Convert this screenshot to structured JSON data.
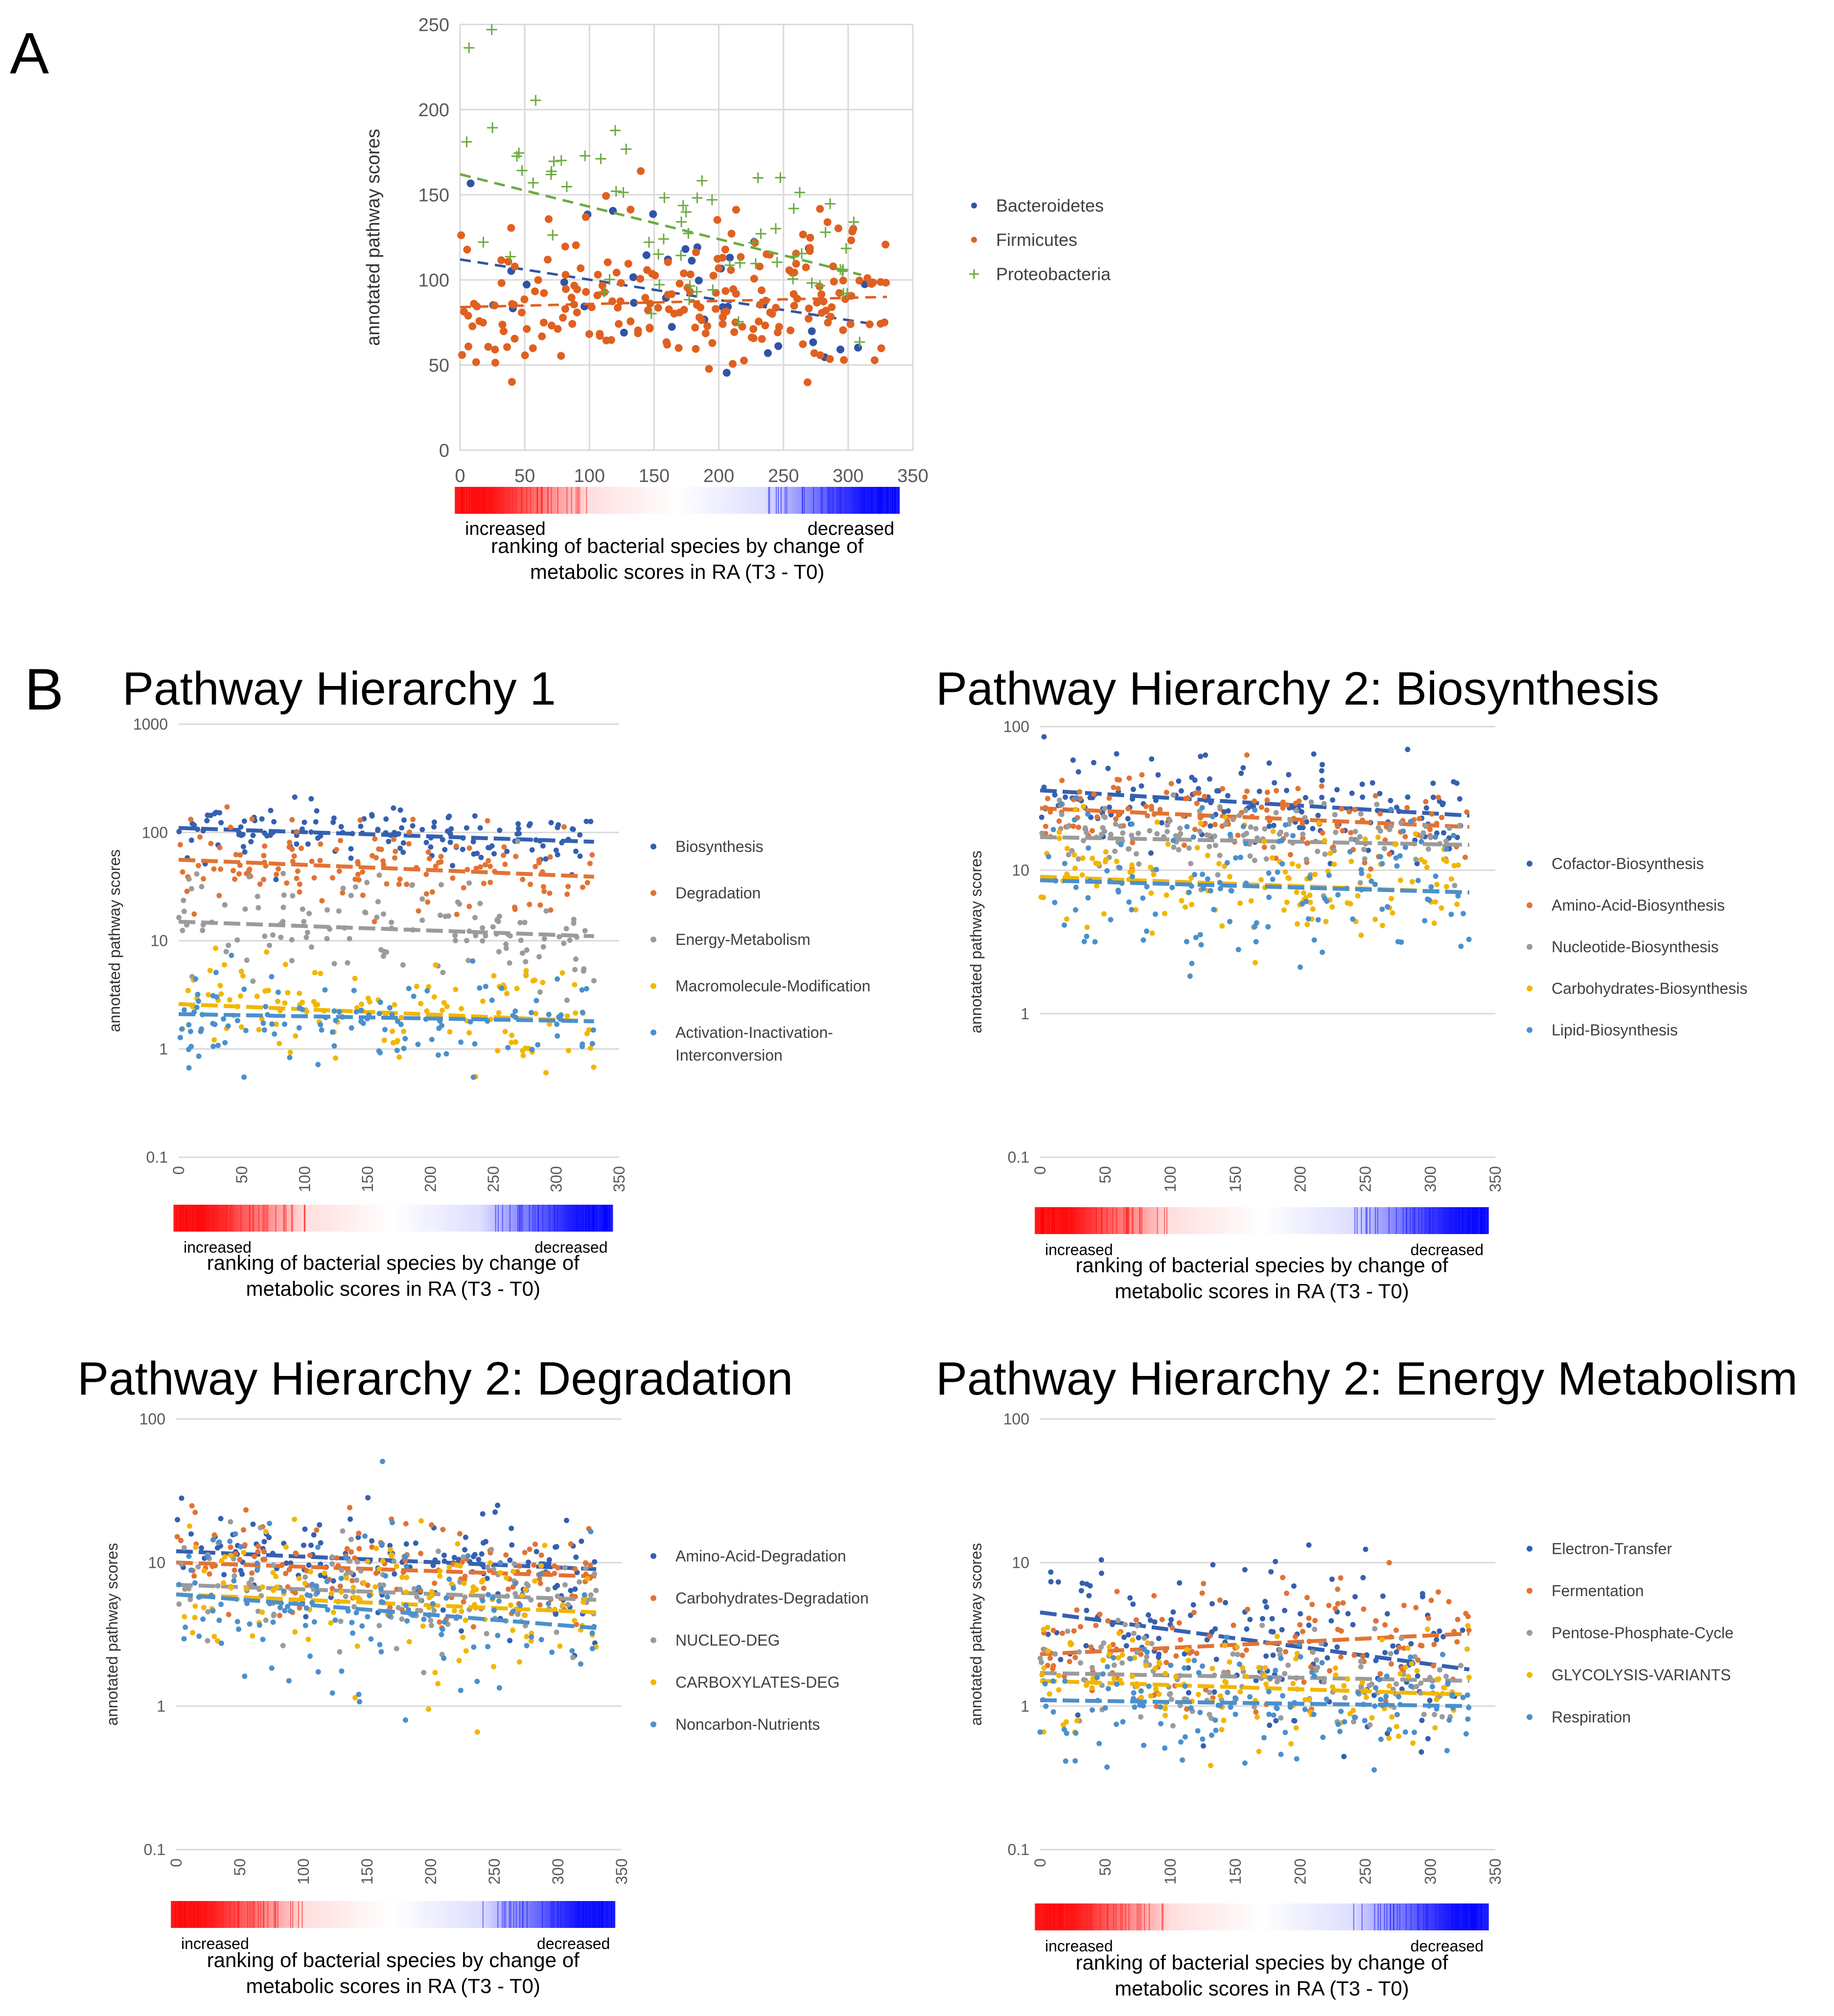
{
  "panel_labels": {
    "a": "A",
    "b": "B"
  },
  "colorbar": {
    "increased": "increased",
    "decreased": "decreased",
    "start_color": "#ff0000",
    "end_color": "#0000ff"
  },
  "xlabel_lines": [
    "ranking of bacterial species by change of",
    "metabolic scores in RA (T3 - T0)"
  ],
  "ylabel": "annotated pathway scores",
  "chart_data": [
    {
      "id": "A",
      "type": "scatter",
      "title": "",
      "xlabel": "ranking of bacterial species by change of metabolic scores in RA (T3 - T0)",
      "ylabel": "annotated pathway scores",
      "xlim": [
        0,
        350
      ],
      "ylim": [
        0,
        250
      ],
      "yscale": "linear",
      "xticks": [
        0,
        50,
        100,
        150,
        200,
        250,
        300,
        350
      ],
      "yticks": [
        0,
        50,
        100,
        150,
        200,
        250
      ],
      "grid": true,
      "legend_position": "right",
      "series": [
        {
          "name": "Bacteroidetes",
          "color": "#2f54a6",
          "marker": "dot",
          "n": 38,
          "xrange": [
            0,
            320
          ],
          "trend": [
            112,
            74
          ],
          "spread": 0.28,
          "seed": 11
        },
        {
          "name": "Firmicutes",
          "color": "#e06020",
          "marker": "dot",
          "n": 220,
          "xrange": [
            0,
            330
          ],
          "trend": [
            84,
            90
          ],
          "spread": 0.24,
          "seed": 22
        },
        {
          "name": "Proteobacteria",
          "color": "#6bab3f",
          "marker": "plus",
          "n": 70,
          "xrange": [
            0,
            310
          ],
          "trend": [
            162,
            103
          ],
          "spread": 0.22,
          "seed": 33
        }
      ]
    },
    {
      "id": "B1",
      "type": "scatter",
      "title": "Pathway Hierarchy 1",
      "xlabel": "ranking of bacterial species by change of metabolic scores in RA (T3 - T0)",
      "ylabel": "annotated pathway scores",
      "xlim": [
        0,
        350
      ],
      "ylim": [
        0.1,
        1000
      ],
      "yscale": "log",
      "xticks": [
        0,
        50,
        100,
        150,
        200,
        250,
        300,
        350
      ],
      "yticks": [
        0.1,
        1,
        10,
        100,
        1000
      ],
      "grid": true,
      "legend_position": "right",
      "series": [
        {
          "name": "Biosynthesis",
          "color": "#3560b0",
          "n": 140,
          "xrange": [
            0,
            330
          ],
          "trend": [
            110,
            82
          ],
          "spread": 0.28,
          "seed": 41
        },
        {
          "name": "Degradation",
          "color": "#e27333",
          "n": 140,
          "xrange": [
            0,
            330
          ],
          "trend": [
            56,
            39
          ],
          "spread": 0.5,
          "seed": 42
        },
        {
          "name": "Energy-Metabolism",
          "color": "#9b9b9b",
          "n": 130,
          "xrange": [
            0,
            330
          ],
          "trend": [
            15,
            11
          ],
          "spread": 0.6,
          "seed": 43
        },
        {
          "name": "Macromolecule-Modification",
          "color": "#f2b600",
          "n": 120,
          "xrange": [
            0,
            330
          ],
          "trend": [
            2.6,
            1.8
          ],
          "spread": 0.55,
          "seed": 44
        },
        {
          "name": "Activation-Inactivation-Interconversion",
          "color": "#4b90cc",
          "n": 120,
          "xrange": [
            0,
            330
          ],
          "trend": [
            2.1,
            1.8
          ],
          "spread": 0.5,
          "seed": 45
        }
      ]
    },
    {
      "id": "B2",
      "type": "scatter",
      "title": "Pathway Hierarchy 2: Biosynthesis",
      "xlabel": "ranking of bacterial species by change of metabolic scores in RA (T3 - T0)",
      "ylabel": "annotated pathway scores",
      "xlim": [
        0,
        350
      ],
      "ylim": [
        0.1,
        100
      ],
      "yscale": "log",
      "xticks": [
        0,
        50,
        100,
        150,
        200,
        250,
        300,
        350
      ],
      "yticks": [
        0.1,
        1,
        10,
        100
      ],
      "grid": true,
      "legend_position": "right",
      "series": [
        {
          "name": "Cofactor-Biosynthesis",
          "color": "#3560b0",
          "n": 140,
          "xrange": [
            0,
            330
          ],
          "trend": [
            36,
            24
          ],
          "spread": 0.35,
          "seed": 51
        },
        {
          "name": "Amino-Acid-Biosynthesis",
          "color": "#e27333",
          "n": 140,
          "xrange": [
            0,
            330
          ],
          "trend": [
            27,
            20
          ],
          "spread": 0.3,
          "seed": 52
        },
        {
          "name": "Nucleotide-Biosynthesis",
          "color": "#9b9b9b",
          "n": 130,
          "xrange": [
            0,
            330
          ],
          "trend": [
            17,
            15
          ],
          "spread": 0.3,
          "seed": 53
        },
        {
          "name": "Carbohydrates-Biosynthesis",
          "color": "#f2b600",
          "n": 130,
          "xrange": [
            0,
            330
          ],
          "trend": [
            9,
            7
          ],
          "spread": 0.5,
          "seed": 54
        },
        {
          "name": "Lipid-Biosynthesis",
          "color": "#4b90cc",
          "n": 130,
          "xrange": [
            0,
            330
          ],
          "trend": [
            8.5,
            7
          ],
          "spread": 0.6,
          "seed": 55
        }
      ]
    },
    {
      "id": "B3",
      "type": "scatter",
      "title": "Pathway Hierarchy 2: Degradation",
      "xlabel": "ranking of bacterial species by change of metabolic scores in RA (T3 - T0)",
      "ylabel": "annotated pathway scores",
      "xlim": [
        0,
        350
      ],
      "ylim": [
        0.1,
        100
      ],
      "yscale": "log",
      "xticks": [
        0,
        50,
        100,
        150,
        200,
        250,
        300,
        350
      ],
      "yticks": [
        0.1,
        1,
        10,
        100
      ],
      "grid": true,
      "legend_position": "right",
      "series": [
        {
          "name": "Amino-Acid-Degradation",
          "color": "#3560b0",
          "n": 140,
          "xrange": [
            0,
            330
          ],
          "trend": [
            12,
            9
          ],
          "spread": 0.45,
          "seed": 61
        },
        {
          "name": "Carbohydrates-Degradation",
          "color": "#e27333",
          "n": 140,
          "xrange": [
            0,
            330
          ],
          "trend": [
            10,
            8
          ],
          "spread": 0.45,
          "seed": 62
        },
        {
          "name": "NUCLEO-DEG",
          "color": "#9b9b9b",
          "n": 130,
          "xrange": [
            0,
            330
          ],
          "trend": [
            7,
            5.5
          ],
          "spread": 0.4,
          "seed": 63
        },
        {
          "name": "CARBOXYLATES-DEG",
          "color": "#f2b600",
          "n": 130,
          "xrange": [
            0,
            330
          ],
          "trend": [
            6,
            4.5
          ],
          "spread": 0.55,
          "seed": 64
        },
        {
          "name": "Noncarbon-Nutrients",
          "color": "#4b90cc",
          "n": 130,
          "xrange": [
            0,
            330
          ],
          "trend": [
            6,
            3.5
          ],
          "spread": 0.65,
          "seed": 65
        }
      ]
    },
    {
      "id": "B4",
      "type": "scatter",
      "title": "Pathway Hierarchy 2: Energy Metabolism",
      "xlabel": "ranking of bacterial species by change of metabolic scores in RA (T3 - T0)",
      "ylabel": "annotated pathway scores",
      "xlim": [
        0,
        350
      ],
      "ylim": [
        0.1,
        100
      ],
      "yscale": "log",
      "xticks": [
        0,
        50,
        100,
        150,
        200,
        250,
        300,
        350
      ],
      "yticks": [
        0.1,
        1,
        10,
        100
      ],
      "grid": true,
      "legend_position": "right",
      "series": [
        {
          "name": "Electron-Transfer",
          "color": "#3560b0",
          "n": 140,
          "xrange": [
            0,
            330
          ],
          "trend": [
            4.5,
            1.8
          ],
          "spread": 0.75,
          "seed": 71
        },
        {
          "name": "Fermentation",
          "color": "#e27333",
          "n": 130,
          "xrange": [
            0,
            330
          ],
          "trend": [
            2.3,
            3.2
          ],
          "spread": 0.55,
          "seed": 72
        },
        {
          "name": "Pentose-Phosphate-Cycle",
          "color": "#9b9b9b",
          "n": 120,
          "xrange": [
            0,
            330
          ],
          "trend": [
            1.7,
            1.5
          ],
          "spread": 0.4,
          "seed": 73
        },
        {
          "name": "GLYCOLYSIS-VARIANTS",
          "color": "#f2b600",
          "n": 130,
          "xrange": [
            0,
            330
          ],
          "trend": [
            1.5,
            1.2
          ],
          "spread": 0.45,
          "seed": 74
        },
        {
          "name": "Respiration",
          "color": "#4b90cc",
          "n": 130,
          "xrange": [
            0,
            330
          ],
          "trend": [
            1.1,
            1.0
          ],
          "spread": 0.5,
          "seed": 75
        }
      ]
    }
  ]
}
